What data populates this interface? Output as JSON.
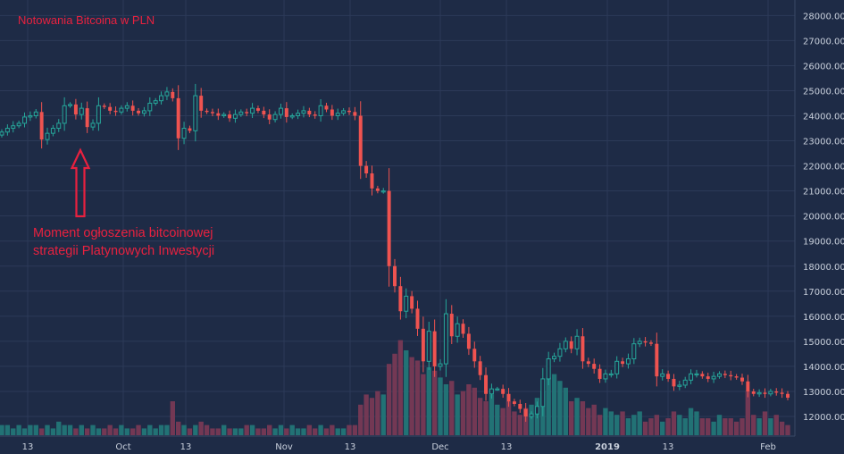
{
  "chart_data": {
    "type": "candlestick",
    "title": "Notowania Bitcoina w PLN",
    "annotation": {
      "lines": [
        "Moment ogłoszenia bitcoinowej",
        "strategii Platynowych Inwestycji"
      ],
      "points_to": "~18 Sep 2018, ~23000 PLN"
    },
    "ylim": [
      11400,
      28200
    ],
    "y_ticks": [
      "12000.00",
      "13000.00",
      "14000.00",
      "15000.00",
      "16000.00",
      "17000.00",
      "18000.00",
      "19000.00",
      "20000.00",
      "21000.00",
      "22000.00",
      "23000.00",
      "24000.00",
      "25000.00",
      "26000.00",
      "27000.00",
      "28000.00"
    ],
    "x_ticks": [
      {
        "label": "13",
        "bold": false
      },
      {
        "label": "Oct",
        "bold": false
      },
      {
        "label": "13",
        "bold": false
      },
      {
        "label": "Nov",
        "bold": false
      },
      {
        "label": "13",
        "bold": false
      },
      {
        "label": "Dec",
        "bold": false
      },
      {
        "label": "13",
        "bold": false
      },
      {
        "label": "2019",
        "bold": true
      },
      {
        "label": "13",
        "bold": false
      },
      {
        "label": "Feb",
        "bold": false
      }
    ],
    "colors": {
      "background": "#1e2b46",
      "grid": "#2c3a58",
      "up": "#26a69a",
      "down": "#ef5350",
      "up_volume": "#227a7a",
      "down_volume": "#7c3a55",
      "text": "#e8213f",
      "axis_text": "#c9d0dc"
    },
    "grid": true,
    "close": [
      23350,
      23500,
      23600,
      23700,
      23950,
      24000,
      24150,
      23050,
      23300,
      23500,
      23700,
      24400,
      24450,
      24050,
      24300,
      23550,
      23700,
      24400,
      24350,
      24200,
      24150,
      24300,
      24400,
      24200,
      24100,
      24200,
      24500,
      24600,
      24800,
      24950,
      24700,
      23100,
      23500,
      23400,
      24800,
      24200,
      24150,
      24100,
      24000,
      24050,
      23900,
      24050,
      24150,
      24100,
      24300,
      24200,
      24050,
      23850,
      24050,
      24300,
      23950,
      24000,
      24100,
      24200,
      24050,
      24000,
      24400,
      24250,
      24000,
      24100,
      24200,
      24150,
      24000,
      22000,
      21700,
      21100,
      21000,
      21000,
      18000,
      17200,
      16200,
      16800,
      16300,
      15500,
      14200,
      15400,
      14000,
      14100,
      16100,
      15200,
      15700,
      15300,
      14700,
      14200,
      13650,
      12900,
      13100,
      13100,
      12900,
      12600,
      12500,
      12300,
      12000,
      12100,
      12400,
      13500,
      14300,
      14400,
      14700,
      15000,
      14700,
      15200,
      14200,
      14100,
      13900,
      13500,
      13700,
      13700,
      14200,
      14100,
      14300,
      14900,
      15000,
      14950,
      14900,
      13600,
      13700,
      13500,
      13200,
      13250,
      13450,
      13700,
      13700,
      13600,
      13500,
      13600,
      13700,
      13650,
      13600,
      13550,
      13400,
      13000,
      12900,
      12950,
      12900,
      13000,
      12950,
      12900,
      12750
    ],
    "volume": [
      0.3,
      0.3,
      0.2,
      0.3,
      0.2,
      0.3,
      0.3,
      0.2,
      0.3,
      0.2,
      0.4,
      0.3,
      0.3,
      0.2,
      0.3,
      0.2,
      0.3,
      0.2,
      0.2,
      0.3,
      0.2,
      0.3,
      0.2,
      0.2,
      0.3,
      0.2,
      0.3,
      0.2,
      0.3,
      0.3,
      1.0,
      0.4,
      0.3,
      0.2,
      0.3,
      0.4,
      0.3,
      0.2,
      0.2,
      0.3,
      0.2,
      0.2,
      0.2,
      0.3,
      0.3,
      0.2,
      0.2,
      0.3,
      0.2,
      0.3,
      0.2,
      0.3,
      0.2,
      0.2,
      0.3,
      0.2,
      0.3,
      0.2,
      0.3,
      0.2,
      0.2,
      0.3,
      0.3,
      0.9,
      1.2,
      1.1,
      1.3,
      1.2,
      2.1,
      2.4,
      2.8,
      2.5,
      2.3,
      2.2,
      1.8,
      2.0,
      1.9,
      1.7,
      1.5,
      1.6,
      1.2,
      1.3,
      1.5,
      1.4,
      1.1,
      1.0,
      1.2,
      0.9,
      0.8,
      1.0,
      0.7,
      0.6,
      0.8,
      0.9,
      1.1,
      1.3,
      1.7,
      1.8,
      1.6,
      1.4,
      1.0,
      1.1,
      1.0,
      0.8,
      0.9,
      0.6,
      0.8,
      0.7,
      0.6,
      0.7,
      0.5,
      0.6,
      0.7,
      0.4,
      0.5,
      0.6,
      0.4,
      0.5,
      0.7,
      0.6,
      0.5,
      0.8,
      0.7,
      0.5,
      0.5,
      0.4,
      0.6,
      0.5,
      0.5,
      0.4,
      0.5,
      1.3,
      0.6,
      0.5,
      0.7,
      0.5,
      0.6,
      0.4,
      0.3
    ]
  }
}
